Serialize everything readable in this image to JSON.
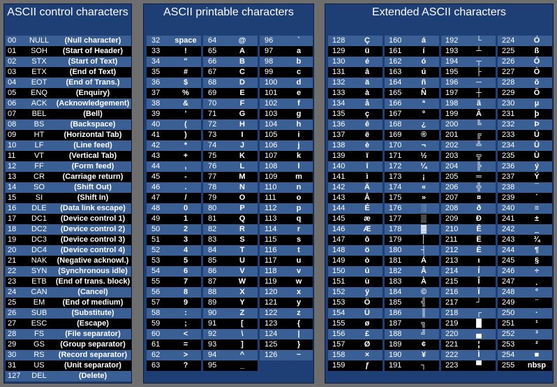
{
  "panels": {
    "control": {
      "title": "ASCII control characters"
    },
    "printable": {
      "title": "ASCII printable characters"
    },
    "extended": {
      "title": "Extended ASCII characters"
    }
  },
  "control_rows": [
    {
      "dec": "00",
      "abbr": "NULL",
      "desc": "(Null character)"
    },
    {
      "dec": "01",
      "abbr": "SOH",
      "desc": "(Start of Header)"
    },
    {
      "dec": "02",
      "abbr": "STX",
      "desc": "(Start of Text)"
    },
    {
      "dec": "03",
      "abbr": "ETX",
      "desc": "(End of Text)"
    },
    {
      "dec": "04",
      "abbr": "EOT",
      "desc": "(End of Trans.)"
    },
    {
      "dec": "05",
      "abbr": "ENQ",
      "desc": "(Enquiry)"
    },
    {
      "dec": "06",
      "abbr": "ACK",
      "desc": "(Acknowledgement)"
    },
    {
      "dec": "07",
      "abbr": "BEL",
      "desc": "(Bell)"
    },
    {
      "dec": "08",
      "abbr": "BS",
      "desc": "(Backspace)"
    },
    {
      "dec": "09",
      "abbr": "HT",
      "desc": "(Horizontal Tab)"
    },
    {
      "dec": "10",
      "abbr": "LF",
      "desc": "(Line feed)"
    },
    {
      "dec": "11",
      "abbr": "VT",
      "desc": "(Vertical Tab)"
    },
    {
      "dec": "12",
      "abbr": "FF",
      "desc": "(Form feed)"
    },
    {
      "dec": "13",
      "abbr": "CR",
      "desc": "(Carriage return)"
    },
    {
      "dec": "14",
      "abbr": "SO",
      "desc": "(Shift Out)"
    },
    {
      "dec": "15",
      "abbr": "SI",
      "desc": "(Shift In)"
    },
    {
      "dec": "16",
      "abbr": "DLE",
      "desc": "(Data link escape)"
    },
    {
      "dec": "17",
      "abbr": "DC1",
      "desc": "(Device control 1)"
    },
    {
      "dec": "18",
      "abbr": "DC2",
      "desc": "(Device control 2)"
    },
    {
      "dec": "19",
      "abbr": "DC3",
      "desc": "(Device control 3)"
    },
    {
      "dec": "20",
      "abbr": "DC4",
      "desc": "(Device control 4)"
    },
    {
      "dec": "21",
      "abbr": "NAK",
      "desc": "(Negative acknowl.)"
    },
    {
      "dec": "22",
      "abbr": "SYN",
      "desc": "(Synchronous idle)"
    },
    {
      "dec": "23",
      "abbr": "ETB",
      "desc": "(End of trans. block)"
    },
    {
      "dec": "24",
      "abbr": "CAN",
      "desc": "(Cancel)"
    },
    {
      "dec": "25",
      "abbr": "EM",
      "desc": "(End of medium)"
    },
    {
      "dec": "26",
      "abbr": "SUB",
      "desc": "(Substitute)"
    },
    {
      "dec": "27",
      "abbr": "ESC",
      "desc": "(Escape)"
    },
    {
      "dec": "28",
      "abbr": "FS",
      "desc": "(File separator)"
    },
    {
      "dec": "29",
      "abbr": "GS",
      "desc": "(Group separator)"
    },
    {
      "dec": "30",
      "abbr": "RS",
      "desc": "(Record separator)"
    },
    {
      "dec": "31",
      "abbr": "US",
      "desc": "(Unit separator)"
    },
    {
      "dec": "127",
      "abbr": "DEL",
      "desc": "(Delete)"
    }
  ],
  "printable_cols": [
    [
      {
        "dec": "32",
        "ch": "space"
      },
      {
        "dec": "33",
        "ch": "!"
      },
      {
        "dec": "34",
        "ch": "\""
      },
      {
        "dec": "35",
        "ch": "#"
      },
      {
        "dec": "36",
        "ch": "$"
      },
      {
        "dec": "37",
        "ch": "%"
      },
      {
        "dec": "38",
        "ch": "&"
      },
      {
        "dec": "39",
        "ch": "'"
      },
      {
        "dec": "40",
        "ch": "("
      },
      {
        "dec": "41",
        "ch": ")"
      },
      {
        "dec": "42",
        "ch": "*"
      },
      {
        "dec": "43",
        "ch": "+"
      },
      {
        "dec": "44",
        "ch": ","
      },
      {
        "dec": "45",
        "ch": "-"
      },
      {
        "dec": "46",
        "ch": "."
      },
      {
        "dec": "47",
        "ch": "/"
      },
      {
        "dec": "48",
        "ch": "0"
      },
      {
        "dec": "49",
        "ch": "1"
      },
      {
        "dec": "50",
        "ch": "2"
      },
      {
        "dec": "51",
        "ch": "3"
      },
      {
        "dec": "52",
        "ch": "4"
      },
      {
        "dec": "53",
        "ch": "5"
      },
      {
        "dec": "54",
        "ch": "6"
      },
      {
        "dec": "55",
        "ch": "7"
      },
      {
        "dec": "56",
        "ch": "8"
      },
      {
        "dec": "57",
        "ch": "9"
      },
      {
        "dec": "58",
        "ch": ":"
      },
      {
        "dec": "59",
        "ch": ";"
      },
      {
        "dec": "60",
        "ch": "<"
      },
      {
        "dec": "61",
        "ch": "="
      },
      {
        "dec": "62",
        "ch": ">"
      },
      {
        "dec": "63",
        "ch": "?"
      }
    ],
    [
      {
        "dec": "64",
        "ch": "@"
      },
      {
        "dec": "65",
        "ch": "A"
      },
      {
        "dec": "66",
        "ch": "B"
      },
      {
        "dec": "67",
        "ch": "C"
      },
      {
        "dec": "68",
        "ch": "D"
      },
      {
        "dec": "69",
        "ch": "E"
      },
      {
        "dec": "70",
        "ch": "F"
      },
      {
        "dec": "71",
        "ch": "G"
      },
      {
        "dec": "72",
        "ch": "H"
      },
      {
        "dec": "73",
        "ch": "I"
      },
      {
        "dec": "74",
        "ch": "J"
      },
      {
        "dec": "75",
        "ch": "K"
      },
      {
        "dec": "76",
        "ch": "L"
      },
      {
        "dec": "77",
        "ch": "M"
      },
      {
        "dec": "78",
        "ch": "N"
      },
      {
        "dec": "79",
        "ch": "O"
      },
      {
        "dec": "80",
        "ch": "P"
      },
      {
        "dec": "81",
        "ch": "Q"
      },
      {
        "dec": "82",
        "ch": "R"
      },
      {
        "dec": "83",
        "ch": "S"
      },
      {
        "dec": "84",
        "ch": "T"
      },
      {
        "dec": "85",
        "ch": "U"
      },
      {
        "dec": "86",
        "ch": "V"
      },
      {
        "dec": "87",
        "ch": "W"
      },
      {
        "dec": "88",
        "ch": "X"
      },
      {
        "dec": "89",
        "ch": "Y"
      },
      {
        "dec": "90",
        "ch": "Z"
      },
      {
        "dec": "91",
        "ch": "["
      },
      {
        "dec": "92",
        "ch": "\\"
      },
      {
        "dec": "93",
        "ch": "]"
      },
      {
        "dec": "94",
        "ch": "^"
      },
      {
        "dec": "95",
        "ch": "_"
      }
    ],
    [
      {
        "dec": "96",
        "ch": "`"
      },
      {
        "dec": "97",
        "ch": "a"
      },
      {
        "dec": "98",
        "ch": "b"
      },
      {
        "dec": "99",
        "ch": "c"
      },
      {
        "dec": "100",
        "ch": "d"
      },
      {
        "dec": "101",
        "ch": "e"
      },
      {
        "dec": "102",
        "ch": "f"
      },
      {
        "dec": "103",
        "ch": "g"
      },
      {
        "dec": "104",
        "ch": "h"
      },
      {
        "dec": "105",
        "ch": "i"
      },
      {
        "dec": "106",
        "ch": "j"
      },
      {
        "dec": "107",
        "ch": "k"
      },
      {
        "dec": "108",
        "ch": "l"
      },
      {
        "dec": "109",
        "ch": "m"
      },
      {
        "dec": "110",
        "ch": "n"
      },
      {
        "dec": "111",
        "ch": "o"
      },
      {
        "dec": "112",
        "ch": "p"
      },
      {
        "dec": "113",
        "ch": "q"
      },
      {
        "dec": "114",
        "ch": "r"
      },
      {
        "dec": "115",
        "ch": "s"
      },
      {
        "dec": "116",
        "ch": "t"
      },
      {
        "dec": "117",
        "ch": "u"
      },
      {
        "dec": "118",
        "ch": "v"
      },
      {
        "dec": "119",
        "ch": "w"
      },
      {
        "dec": "120",
        "ch": "x"
      },
      {
        "dec": "121",
        "ch": "y"
      },
      {
        "dec": "122",
        "ch": "z"
      },
      {
        "dec": "123",
        "ch": "{"
      },
      {
        "dec": "124",
        "ch": "|"
      },
      {
        "dec": "125",
        "ch": "}"
      },
      {
        "dec": "126",
        "ch": "~"
      }
    ]
  ],
  "extended_cols": [
    [
      {
        "dec": "128",
        "ch": "Ç"
      },
      {
        "dec": "129",
        "ch": "ü"
      },
      {
        "dec": "130",
        "ch": "é"
      },
      {
        "dec": "131",
        "ch": "â"
      },
      {
        "dec": "132",
        "ch": "ä"
      },
      {
        "dec": "133",
        "ch": "à"
      },
      {
        "dec": "134",
        "ch": "å"
      },
      {
        "dec": "135",
        "ch": "ç"
      },
      {
        "dec": "136",
        "ch": "ê"
      },
      {
        "dec": "137",
        "ch": "ë"
      },
      {
        "dec": "138",
        "ch": "è"
      },
      {
        "dec": "139",
        "ch": "ï"
      },
      {
        "dec": "140",
        "ch": "î"
      },
      {
        "dec": "141",
        "ch": "ì"
      },
      {
        "dec": "142",
        "ch": "Ä"
      },
      {
        "dec": "143",
        "ch": "Å"
      },
      {
        "dec": "144",
        "ch": "É"
      },
      {
        "dec": "145",
        "ch": "æ"
      },
      {
        "dec": "146",
        "ch": "Æ"
      },
      {
        "dec": "147",
        "ch": "ô"
      },
      {
        "dec": "148",
        "ch": "ö"
      },
      {
        "dec": "149",
        "ch": "ò"
      },
      {
        "dec": "150",
        "ch": "û"
      },
      {
        "dec": "151",
        "ch": "ù"
      },
      {
        "dec": "152",
        "ch": "ÿ"
      },
      {
        "dec": "153",
        "ch": "Ö"
      },
      {
        "dec": "154",
        "ch": "Ü"
      },
      {
        "dec": "155",
        "ch": "ø"
      },
      {
        "dec": "156",
        "ch": "£"
      },
      {
        "dec": "157",
        "ch": "Ø"
      },
      {
        "dec": "158",
        "ch": "×"
      },
      {
        "dec": "159",
        "ch": "ƒ"
      }
    ],
    [
      {
        "dec": "160",
        "ch": "á"
      },
      {
        "dec": "161",
        "ch": "í"
      },
      {
        "dec": "162",
        "ch": "ó"
      },
      {
        "dec": "163",
        "ch": "ú"
      },
      {
        "dec": "164",
        "ch": "ñ"
      },
      {
        "dec": "165",
        "ch": "Ñ"
      },
      {
        "dec": "166",
        "ch": "ª"
      },
      {
        "dec": "167",
        "ch": "º"
      },
      {
        "dec": "168",
        "ch": "¿"
      },
      {
        "dec": "169",
        "ch": "®"
      },
      {
        "dec": "170",
        "ch": "¬"
      },
      {
        "dec": "171",
        "ch": "½"
      },
      {
        "dec": "172",
        "ch": "¼"
      },
      {
        "dec": "173",
        "ch": "¡"
      },
      {
        "dec": "174",
        "ch": "«"
      },
      {
        "dec": "175",
        "ch": "»"
      },
      {
        "dec": "176",
        "ch": "░"
      },
      {
        "dec": "177",
        "ch": "▒"
      },
      {
        "dec": "178",
        "ch": "▓"
      },
      {
        "dec": "179",
        "ch": "│"
      },
      {
        "dec": "180",
        "ch": "┤"
      },
      {
        "dec": "181",
        "ch": "Á"
      },
      {
        "dec": "182",
        "ch": "Â"
      },
      {
        "dec": "183",
        "ch": "À"
      },
      {
        "dec": "184",
        "ch": "©"
      },
      {
        "dec": "185",
        "ch": "╣"
      },
      {
        "dec": "186",
        "ch": "║"
      },
      {
        "dec": "187",
        "ch": "╗"
      },
      {
        "dec": "188",
        "ch": "╝"
      },
      {
        "dec": "189",
        "ch": "¢"
      },
      {
        "dec": "190",
        "ch": "¥"
      },
      {
        "dec": "191",
        "ch": "┐"
      }
    ],
    [
      {
        "dec": "192",
        "ch": "└"
      },
      {
        "dec": "193",
        "ch": "┴"
      },
      {
        "dec": "194",
        "ch": "┬"
      },
      {
        "dec": "195",
        "ch": "├"
      },
      {
        "dec": "196",
        "ch": "─"
      },
      {
        "dec": "197",
        "ch": "┼"
      },
      {
        "dec": "198",
        "ch": "ã"
      },
      {
        "dec": "199",
        "ch": "Ã"
      },
      {
        "dec": "200",
        "ch": "╚"
      },
      {
        "dec": "201",
        "ch": "╔"
      },
      {
        "dec": "202",
        "ch": "╩"
      },
      {
        "dec": "203",
        "ch": "╦"
      },
      {
        "dec": "204",
        "ch": "╠"
      },
      {
        "dec": "205",
        "ch": "═"
      },
      {
        "dec": "206",
        "ch": "╬"
      },
      {
        "dec": "207",
        "ch": "¤"
      },
      {
        "dec": "208",
        "ch": "ð"
      },
      {
        "dec": "209",
        "ch": "Ð"
      },
      {
        "dec": "210",
        "ch": "Ê"
      },
      {
        "dec": "211",
        "ch": "Ë"
      },
      {
        "dec": "212",
        "ch": "È"
      },
      {
        "dec": "213",
        "ch": "ı"
      },
      {
        "dec": "214",
        "ch": "Í"
      },
      {
        "dec": "215",
        "ch": "Î"
      },
      {
        "dec": "216",
        "ch": "Ï"
      },
      {
        "dec": "217",
        "ch": "┘"
      },
      {
        "dec": "218",
        "ch": "┌"
      },
      {
        "dec": "219",
        "ch": "█"
      },
      {
        "dec": "220",
        "ch": "▄"
      },
      {
        "dec": "221",
        "ch": "¦"
      },
      {
        "dec": "222",
        "ch": "Ì"
      },
      {
        "dec": "223",
        "ch": "▀"
      }
    ],
    [
      {
        "dec": "224",
        "ch": "Ó"
      },
      {
        "dec": "225",
        "ch": "ß"
      },
      {
        "dec": "226",
        "ch": "Ô"
      },
      {
        "dec": "227",
        "ch": "Ò"
      },
      {
        "dec": "228",
        "ch": "õ"
      },
      {
        "dec": "229",
        "ch": "Õ"
      },
      {
        "dec": "230",
        "ch": "µ"
      },
      {
        "dec": "231",
        "ch": "þ"
      },
      {
        "dec": "232",
        "ch": "Þ"
      },
      {
        "dec": "233",
        "ch": "Ú"
      },
      {
        "dec": "234",
        "ch": "Û"
      },
      {
        "dec": "235",
        "ch": "Ù"
      },
      {
        "dec": "236",
        "ch": "ý"
      },
      {
        "dec": "237",
        "ch": "Ý"
      },
      {
        "dec": "238",
        "ch": "¯"
      },
      {
        "dec": "239",
        "ch": "´"
      },
      {
        "dec": "240",
        "ch": "≡"
      },
      {
        "dec": "241",
        "ch": "±"
      },
      {
        "dec": "242",
        "ch": "‗"
      },
      {
        "dec": "243",
        "ch": "¾"
      },
      {
        "dec": "244",
        "ch": "¶"
      },
      {
        "dec": "245",
        "ch": "§"
      },
      {
        "dec": "246",
        "ch": "÷"
      },
      {
        "dec": "247",
        "ch": "¸"
      },
      {
        "dec": "248",
        "ch": "°"
      },
      {
        "dec": "249",
        "ch": "¨"
      },
      {
        "dec": "250",
        "ch": "·"
      },
      {
        "dec": "251",
        "ch": "¹"
      },
      {
        "dec": "252",
        "ch": "³"
      },
      {
        "dec": "253",
        "ch": "²"
      },
      {
        "dec": "254",
        "ch": "■"
      },
      {
        "dec": "255",
        "ch": "nbsp"
      }
    ]
  ]
}
